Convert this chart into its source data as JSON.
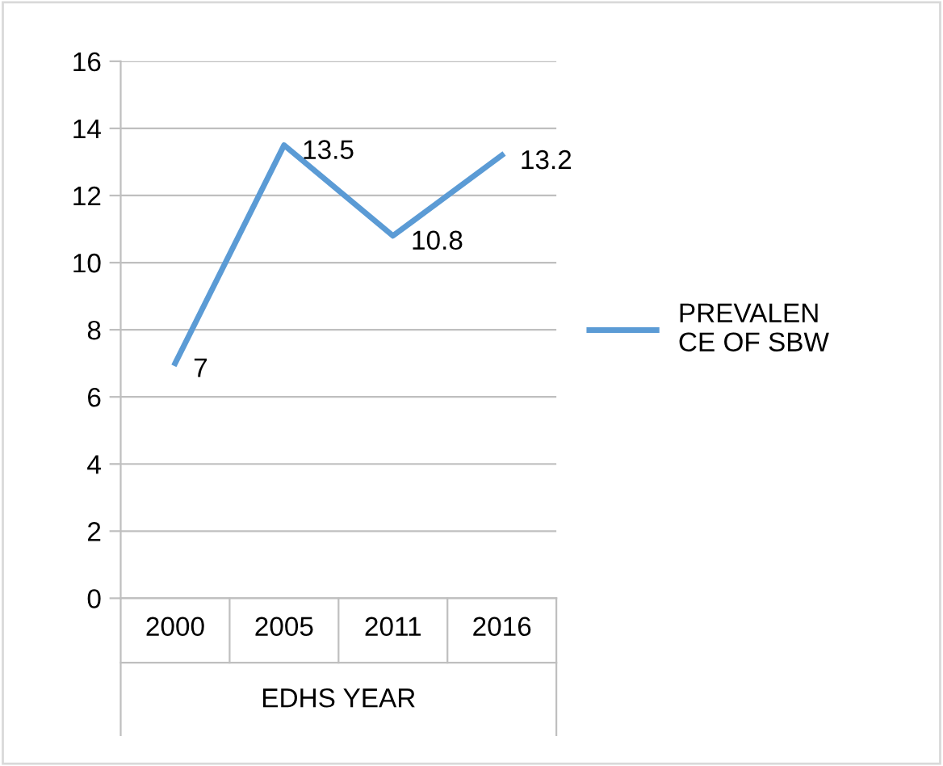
{
  "chart_data": {
    "type": "line",
    "xlabel": "EDHS YEAR",
    "categories": [
      "2000",
      "2005",
      "2011",
      "2016"
    ],
    "series": [
      {
        "name": "PREVALENCE OF SBW",
        "color": "#5b9bd5",
        "values": [
          7,
          13.5,
          10.8,
          13.2
        ]
      }
    ],
    "ylim": [
      0,
      16
    ],
    "yticks": [
      0,
      2,
      4,
      6,
      8,
      10,
      12,
      14,
      16
    ],
    "grid": "y",
    "legend": "right",
    "data_labels": true,
    "marker": "none",
    "line_style": "solid"
  }
}
